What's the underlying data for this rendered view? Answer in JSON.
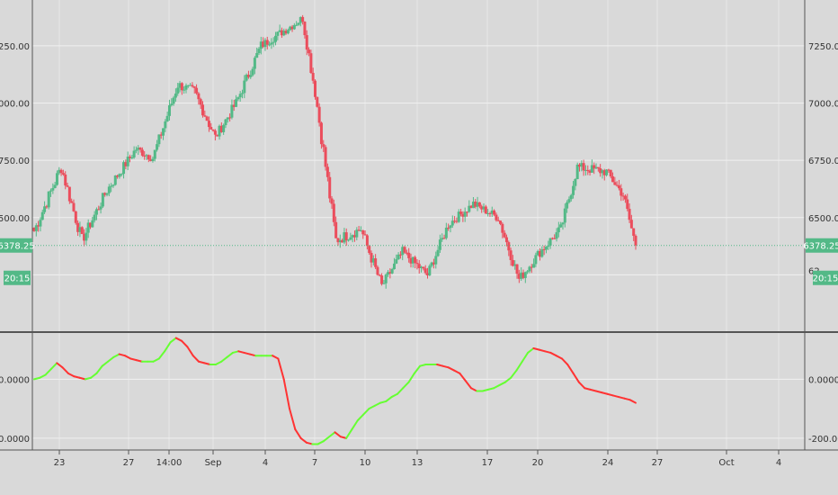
{
  "chart_data": [
    {
      "type": "candlestick",
      "title": "",
      "x_labels": [
        "23",
        "27",
        "14:00",
        "Sep",
        "4",
        "7",
        "10",
        "13",
        "17",
        "20",
        "24",
        "27",
        "Oct",
        "4"
      ],
      "y_ticks": [
        "7250.00",
        "7000.00",
        "6750.00",
        "6500.00"
      ],
      "last_price": 6378.25,
      "last_price_label": "6378.25",
      "countdown_label": "20:15",
      "partial_tick_label": "62",
      "ylim": [
        6000,
        7450
      ],
      "up_color": "#53b987",
      "down_color": "#eb4d5c",
      "segments": [
        {
          "bars": 14,
          "from": 6420,
          "to": 6720,
          "vol": 60
        },
        {
          "bars": 10,
          "from": 6720,
          "to": 6400,
          "vol": 60
        },
        {
          "bars": 12,
          "from": 6400,
          "to": 6620,
          "vol": 50
        },
        {
          "bars": 14,
          "from": 6620,
          "to": 6800,
          "vol": 45
        },
        {
          "bars": 8,
          "from": 6800,
          "to": 6760,
          "vol": 40
        },
        {
          "bars": 12,
          "from": 6760,
          "to": 7080,
          "vol": 50
        },
        {
          "bars": 8,
          "from": 7080,
          "to": 7050,
          "vol": 45
        },
        {
          "bars": 10,
          "from": 7050,
          "to": 6850,
          "vol": 50
        },
        {
          "bars": 10,
          "from": 6850,
          "to": 7000,
          "vol": 45
        },
        {
          "bars": 12,
          "from": 7000,
          "to": 7250,
          "vol": 50
        },
        {
          "bars": 20,
          "from": 7250,
          "to": 7370,
          "vol": 40
        },
        {
          "bars": 6,
          "from": 7370,
          "to": 7050,
          "vol": 60
        },
        {
          "bars": 10,
          "from": 7050,
          "to": 6400,
          "vol": 70
        },
        {
          "bars": 12,
          "from": 6400,
          "to": 6450,
          "vol": 50
        },
        {
          "bars": 10,
          "from": 6450,
          "to": 6200,
          "vol": 55
        },
        {
          "bars": 10,
          "from": 6200,
          "to": 6350,
          "vol": 45
        },
        {
          "bars": 12,
          "from": 6350,
          "to": 6250,
          "vol": 40
        },
        {
          "bars": 10,
          "from": 6250,
          "to": 6470,
          "vol": 45
        },
        {
          "bars": 12,
          "from": 6470,
          "to": 6560,
          "vol": 40
        },
        {
          "bars": 12,
          "from": 6560,
          "to": 6500,
          "vol": 40
        },
        {
          "bars": 10,
          "from": 6500,
          "to": 6230,
          "vol": 50
        },
        {
          "bars": 10,
          "from": 6230,
          "to": 6350,
          "vol": 45
        },
        {
          "bars": 10,
          "from": 6350,
          "to": 6450,
          "vol": 45
        },
        {
          "bars": 8,
          "from": 6450,
          "to": 6720,
          "vol": 50
        },
        {
          "bars": 14,
          "from": 6720,
          "to": 6700,
          "vol": 45
        },
        {
          "bars": 8,
          "from": 6700,
          "to": 6600,
          "vol": 45
        },
        {
          "bars": 6,
          "from": 6600,
          "to": 6378,
          "vol": 50
        }
      ]
    },
    {
      "type": "line",
      "title": "",
      "y_ticks": [
        "0.0000",
        "-200.0000"
      ],
      "ylim": [
        -240,
        160
      ],
      "rising_color": "#66ff33",
      "falling_color": "#ff3333",
      "x": [
        0,
        4,
        8,
        12,
        16,
        20,
        24,
        28,
        32,
        36,
        40,
        44,
        48,
        52,
        56,
        60,
        64,
        68,
        72,
        76,
        80,
        84,
        88,
        92,
        96,
        100,
        104,
        108,
        112,
        116,
        120,
        124,
        128,
        132,
        136,
        140,
        144,
        148,
        152,
        156,
        160,
        164,
        168,
        172,
        176,
        180,
        184,
        188,
        192,
        196,
        200,
        204,
        208,
        212,
        216,
        220,
        224,
        228,
        232,
        236,
        240,
        244,
        248,
        252,
        256,
        260,
        264,
        268,
        272,
        276,
        280,
        284,
        288,
        292,
        296,
        300,
        304,
        308,
        312,
        316,
        320,
        324,
        328,
        332,
        336,
        340,
        344,
        348,
        352,
        356,
        360,
        364,
        368,
        372,
        376,
        380,
        384,
        388,
        392,
        396,
        400,
        404,
        408,
        412,
        416,
        420,
        424
      ],
      "values": [
        0,
        5,
        15,
        35,
        55,
        40,
        20,
        10,
        5,
        0,
        5,
        20,
        45,
        60,
        75,
        85,
        80,
        70,
        65,
        60,
        60,
        60,
        70,
        95,
        125,
        140,
        130,
        110,
        80,
        60,
        55,
        50,
        50,
        60,
        75,
        90,
        95,
        90,
        85,
        80,
        80,
        80,
        80,
        70,
        0,
        -100,
        -170,
        -200,
        -215,
        -220,
        -220,
        -210,
        -195,
        -180,
        -195,
        -200,
        -170,
        -140,
        -120,
        -100,
        -90,
        -80,
        -75,
        -60,
        -50,
        -30,
        -10,
        20,
        45,
        50,
        50,
        50,
        45,
        40,
        30,
        20,
        -5,
        -30,
        -40,
        -40,
        -35,
        -30,
        -20,
        -10,
        5,
        30,
        60,
        90,
        105,
        100,
        95,
        90,
        80,
        70,
        50,
        20,
        -10,
        -30,
        -35,
        -40,
        -45,
        -50,
        -55,
        -60,
        -65,
        -70,
        -80
      ]
    }
  ]
}
